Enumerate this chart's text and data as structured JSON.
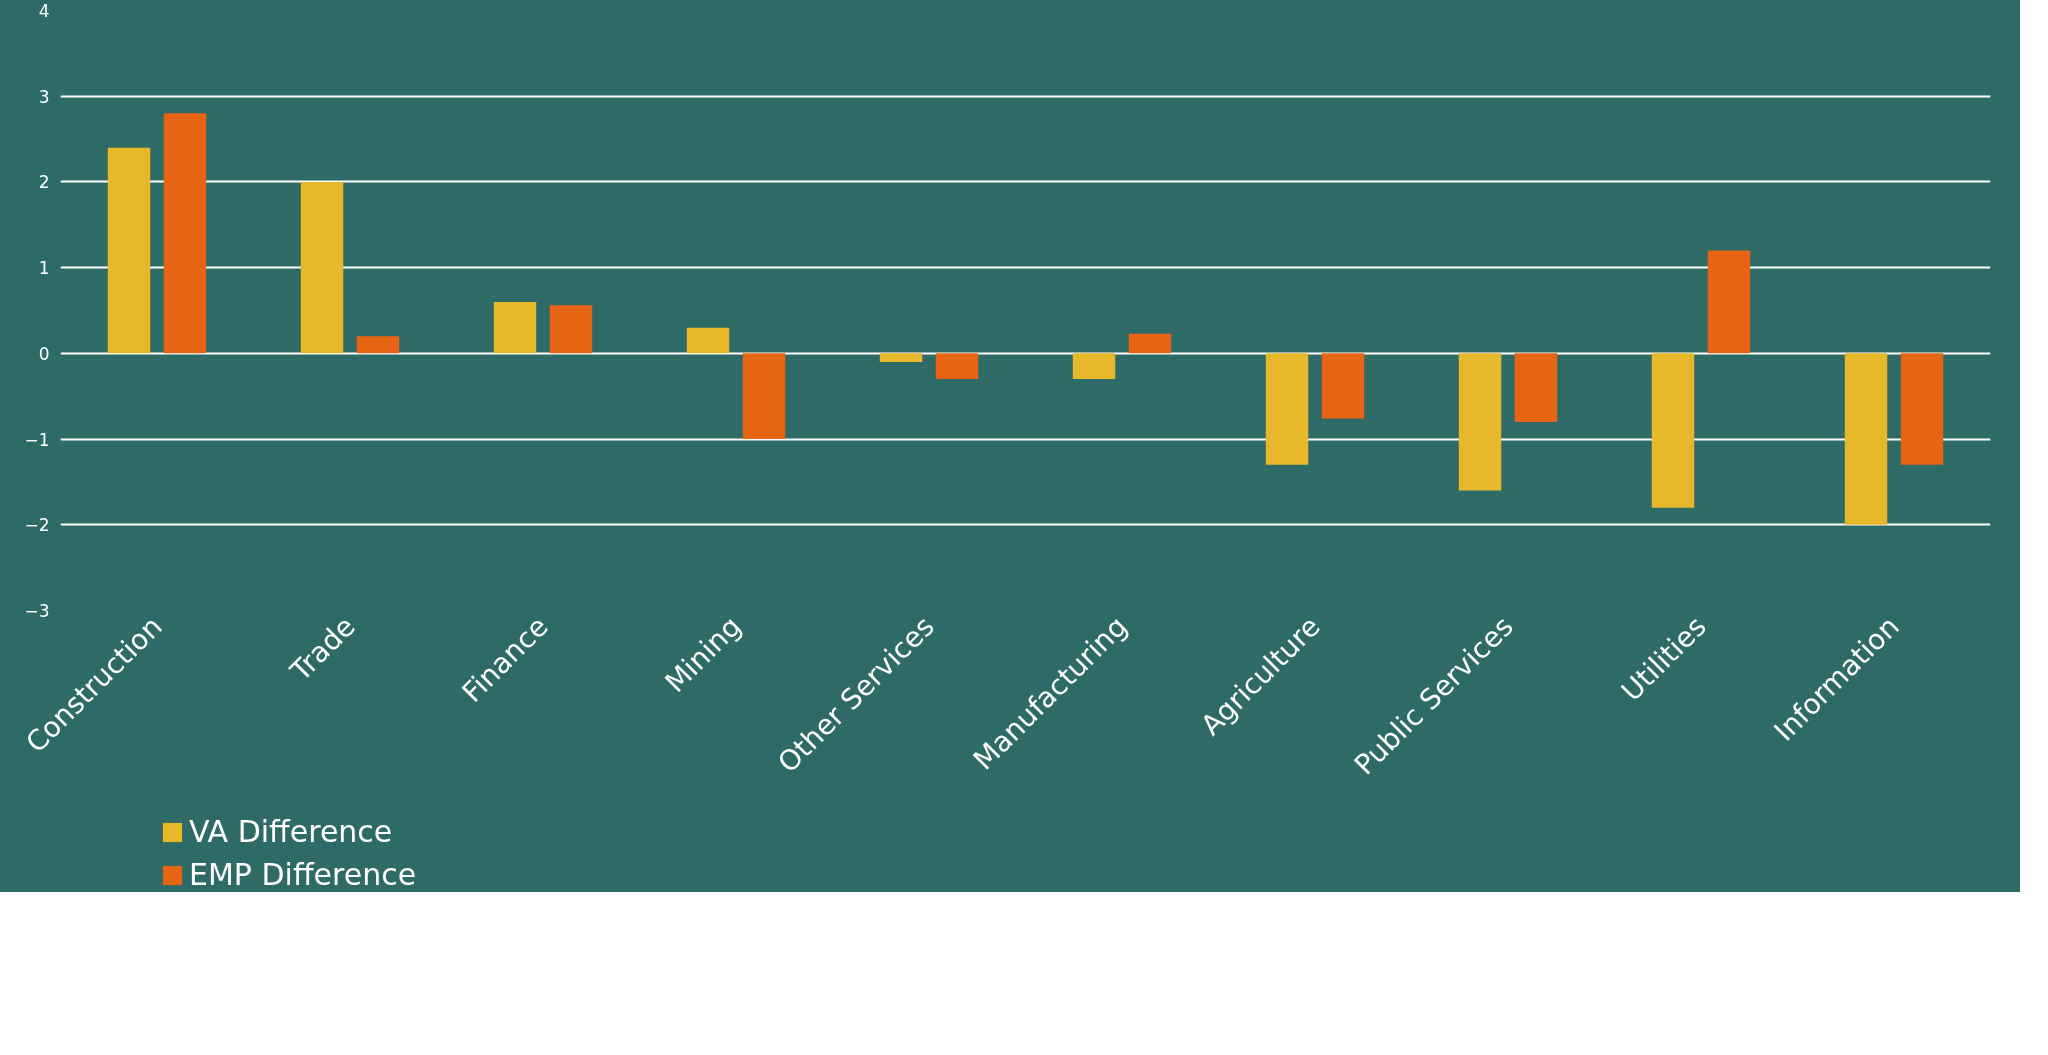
{
  "chart_data": {
    "type": "bar",
    "categories": [
      "Construction",
      "Trade",
      "Finance",
      "Mining",
      "Other Services",
      "Manufacturing",
      "Agriculture",
      "Public Services",
      "Utilities",
      "Information"
    ],
    "series": [
      {
        "name": "VA Difference",
        "color": "#e6b82a",
        "values": [
          2.4,
          2.0,
          0.6,
          0.3,
          -0.1,
          -0.3,
          -1.3,
          -1.6,
          -1.8,
          -2.0
        ]
      },
      {
        "name": "EMP Difference",
        "color": "#e86415",
        "values": [
          2.8,
          0.2,
          0.56,
          -1.0,
          -0.3,
          0.23,
          -0.76,
          -0.8,
          1.2,
          -1.3
        ]
      }
    ],
    "ylim": [
      -3,
      4
    ],
    "yticks": [
      -3,
      -2,
      -1,
      0,
      1,
      2,
      3,
      4
    ],
    "grid": "y",
    "legend": "bottom left"
  }
}
